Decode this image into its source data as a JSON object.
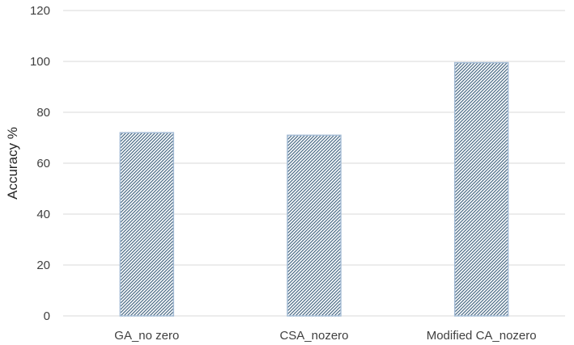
{
  "chart_data": {
    "type": "bar",
    "title": "",
    "xlabel": "",
    "ylabel": "Accuracy %",
    "categories": [
      "GA_no zero",
      "CSA_nozero",
      "Modified CA_nozero"
    ],
    "values": [
      72,
      71,
      99.5
    ],
    "ylim": [
      0,
      120
    ],
    "yticks": [
      0,
      20,
      40,
      60,
      80,
      100,
      120
    ],
    "grid": true,
    "legend": "none",
    "colors": {
      "bar_pattern": "#4a6b86",
      "bar_background": "#ffffff",
      "bar_outline": "#a6bdd6",
      "gridline": "#d9d9d9"
    }
  }
}
